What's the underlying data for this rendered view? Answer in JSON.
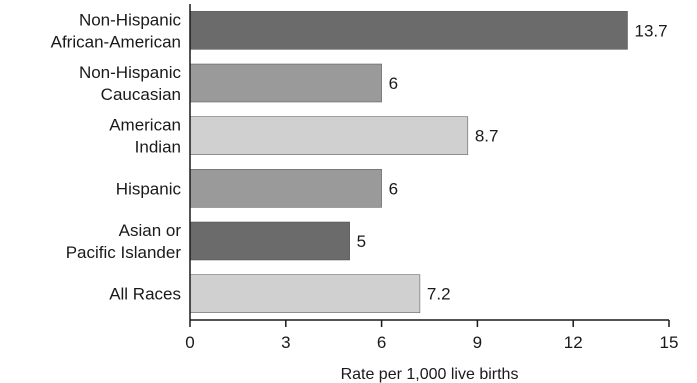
{
  "chart_data": {
    "type": "bar",
    "orientation": "horizontal",
    "categories": [
      [
        "Non-Hispanic",
        "African-American"
      ],
      [
        "Non-Hispanic",
        "Caucasian"
      ],
      [
        "American",
        "Indian"
      ],
      [
        "Hispanic"
      ],
      [
        "Asian or",
        "Pacific Islander"
      ],
      [
        "All Races"
      ]
    ],
    "values": [
      13.7,
      6,
      8.7,
      6,
      5,
      7.2
    ],
    "value_labels": [
      "13.7",
      "6",
      "8.7",
      "6",
      "5",
      "7.2"
    ],
    "bar_colors": [
      "#6b6b6b",
      "#9a9a9a",
      "#d0d0d0",
      "#9a9a9a",
      "#6b6b6b",
      "#d0d0d0"
    ],
    "xlim": [
      0,
      15
    ],
    "xticks": [
      0,
      3,
      6,
      9,
      12,
      15
    ],
    "xlabel": "Rate per 1,000 live births",
    "grid": false,
    "legend": "none"
  }
}
